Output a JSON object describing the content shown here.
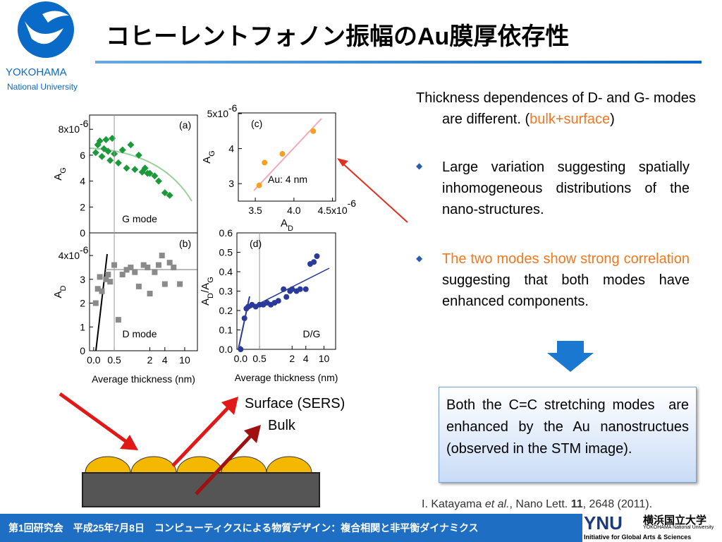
{
  "header": {
    "title": "コヒーレントフォノン振幅のAu膜厚依存性",
    "logo_line1": "YOKOHAMA",
    "logo_line2": "National University"
  },
  "chart_data": [
    {
      "type": "scatter",
      "label": "(a)",
      "note": "G mode",
      "ylabel": [
        "A",
        "G"
      ],
      "xscale": "linear-log",
      "xbreak": 1,
      "xlim": [
        -0.1,
        18
      ],
      "ylim": [
        0,
        9.1
      ],
      "yticks": [
        0,
        2,
        4,
        6,
        {
          "value": 8,
          "label": "8x10"
        }
      ],
      "yexp": "-6",
      "series": [
        {
          "color": "#1a9a3a",
          "marker": "diamond",
          "x": [
            0.05,
            0.1,
            0.15,
            0.2,
            0.25,
            0.3,
            0.35,
            0.4,
            0.45,
            0.5,
            0.6,
            0.7,
            0.8,
            0.9,
            1.0,
            1.2,
            1.4,
            1.6,
            1.8,
            2,
            2.5,
            3,
            4,
            5
          ],
          "values": [
            6.2,
            6.8,
            7.1,
            5.9,
            6.5,
            7.2,
            6.3,
            5.6,
            7.3,
            6.1,
            5.4,
            6.4,
            5.0,
            6.8,
            4.9,
            6.0,
            4.7,
            5.0,
            4.6,
            4.6,
            4.4,
            4.0,
            3.1,
            2.9
          ]
        }
      ]
    },
    {
      "type": "scatter",
      "label": "(b)",
      "note": "D mode",
      "ylabel": [
        "A",
        "D"
      ],
      "xlabel": "Average thickness (nm)",
      "xscale": "linear-log",
      "xbreak": 1,
      "xlim": [
        -0.1,
        18
      ],
      "ylim": [
        0,
        4.95
      ],
      "xticks": [
        {
          "value": 0,
          "label": "0.0"
        },
        0.5,
        2,
        4,
        10
      ],
      "yticks": [
        0,
        1,
        2,
        3,
        {
          "value": 4,
          "label": "4x10"
        }
      ],
      "yexp": "-6",
      "series": [
        {
          "color": "#8a8a8a",
          "marker": "square",
          "x": [
            0.05,
            0.1,
            0.15,
            0.2,
            0.3,
            0.35,
            0.4,
            0.5,
            0.6,
            0.7,
            0.8,
            0.9,
            1,
            1.2,
            1.5,
            1.8,
            2,
            2.5,
            3,
            3.5,
            4,
            5,
            6,
            8
          ],
          "values": [
            2.0,
            2.6,
            3.1,
            2.5,
            3.0,
            3.2,
            2.9,
            3.6,
            1.3,
            3.2,
            3.4,
            3.5,
            3.3,
            2.7,
            3.6,
            3.5,
            2.4,
            3.3,
            3.6,
            4.0,
            2.8,
            3.7,
            3.5,
            2.8
          ]
        }
      ]
    },
    {
      "type": "scatter",
      "label": "(c)",
      "note": "Au: 4 nm",
      "ylabel": [
        "A",
        "G"
      ],
      "xlabel": [
        "A",
        "D"
      ],
      "xlim": [
        3.28,
        4.54
      ],
      "ylim": [
        2.5,
        5.02
      ],
      "xticks": [
        3.5,
        {
          "value": 4,
          "label": "4.0"
        },
        {
          "value": 4.5,
          "label": "4.5x10"
        }
      ],
      "xexp": "-6",
      "yticks": [
        3,
        4,
        {
          "value": 5,
          "label": "5x10"
        }
      ],
      "yexp": "-6",
      "series": [
        {
          "color": "#f5a020",
          "marker": "circle",
          "x": [
            3.55,
            3.62,
            3.85,
            4.25
          ],
          "values": [
            2.95,
            3.6,
            3.85,
            4.5
          ]
        }
      ]
    },
    {
      "type": "scatter",
      "label": "(d)",
      "note": "D/G",
      "ylabel": [
        "A",
        "D",
        "/A",
        "G"
      ],
      "xlabel": "Average thickness (nm)",
      "xscale": "linear-log",
      "xbreak": 1,
      "xlim": [
        -0.1,
        18
      ],
      "ylim": [
        0,
        0.6
      ],
      "xticks": [
        {
          "value": 0,
          "label": "0.0"
        },
        0.5,
        2,
        4,
        10
      ],
      "yticks": [
        {
          "value": 0,
          "label": "0.0"
        },
        0.1,
        0.2,
        0.3,
        0.4,
        0.5,
        0.6
      ],
      "series": [
        {
          "color": "#2a3a9a",
          "marker": "circle",
          "x": [
            0.0,
            0.1,
            0.15,
            0.2,
            0.3,
            0.4,
            0.5,
            0.6,
            0.7,
            0.8,
            0.9,
            1,
            1.3,
            1.5,
            1.8,
            2,
            2.5,
            3,
            4,
            5,
            6,
            7
          ],
          "values": [
            0.0,
            0.16,
            0.21,
            0.22,
            0.23,
            0.22,
            0.23,
            0.23,
            0.24,
            0.23,
            0.24,
            0.25,
            0.31,
            0.27,
            0.3,
            0.31,
            0.3,
            0.31,
            0.31,
            0.44,
            0.45,
            0.48
          ]
        }
      ]
    }
  ],
  "text": {
    "intro": [
      "Thickness dependences of D- and G- modes are different. (",
      "bulk+surface",
      ")"
    ],
    "bullet1": "Large variation suggesting spatially inhomogeneous distributions of the nano-structures.",
    "bullet2": [
      "The two modes show strong correlation",
      " suggesting that both modes have enhanced components."
    ],
    "box": "Both the C=C stretching modes  are enhanced by the Au nanostructues (observed in the STM image).",
    "surface": "Surface (SERS)",
    "bulk": "Bulk",
    "citation": [
      "I. Katayama ",
      "et al.",
      ", Nano Lett. ",
      "11",
      ", 2648 (2011)."
    ]
  },
  "footer": {
    "text": "第1回研究会　平成25年7月8日　コンピューティクスによる物質デザイン：複合相関と非平衡ダイナミクス",
    "logo": "YNU",
    "logo_jp": "横浜国立大学",
    "logo_en": "YOKOHAMA National University",
    "logo_sub": "Initiative for Global Arts & Sciences"
  }
}
